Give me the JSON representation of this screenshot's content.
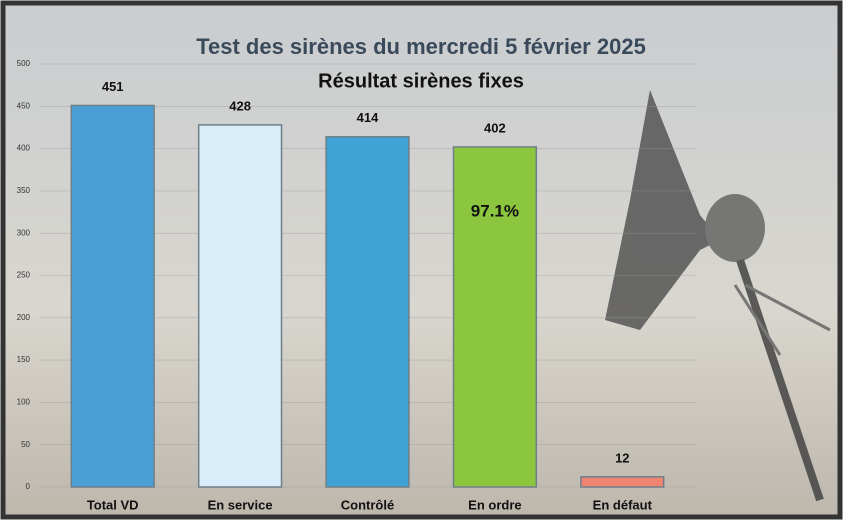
{
  "chart_data": {
    "type": "bar",
    "title": "Test des sirènes du mercredi 5 février 2025",
    "subtitle": "Résultat sirènes fixes",
    "annotation": "97.1%",
    "categories": [
      "Total VD",
      "En service",
      "Contrôlé",
      "En ordre",
      "En défaut"
    ],
    "values": [
      451,
      428,
      414,
      402,
      12
    ],
    "colors": [
      "#4a9fd4",
      "#d8edf9",
      "#3fa3d6",
      "#8cc63f",
      "#ef8472"
    ],
    "ylim": [
      0,
      500
    ],
    "yticks": [
      0,
      50,
      100,
      150,
      200,
      250,
      300,
      350,
      400,
      450,
      500
    ],
    "grid": true
  }
}
